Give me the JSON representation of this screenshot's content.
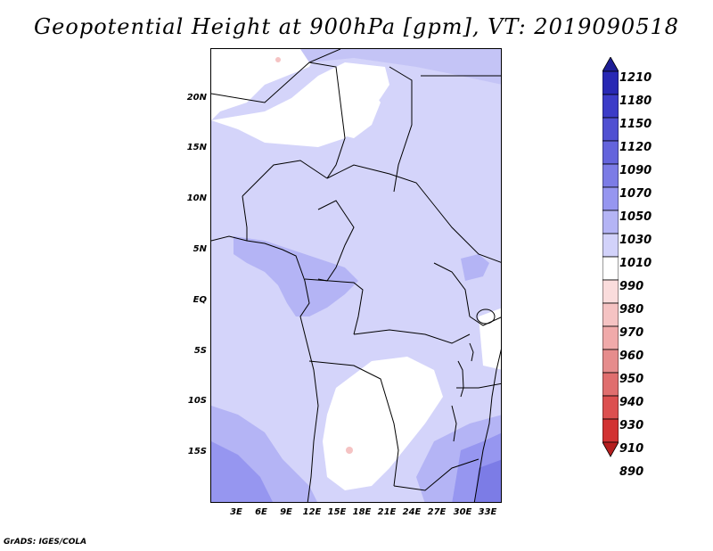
{
  "title": "Geopotential Height at 900hPa [gpm], VT: 2019090518",
  "credit": "GrADS: IGES/COLA",
  "lat_labels": [
    "20N",
    "15N",
    "10N",
    "5N",
    "EQ",
    "5S",
    "10S",
    "15S"
  ],
  "lon_labels": [
    "3E",
    "6E",
    "9E",
    "12E",
    "15E",
    "18E",
    "21E",
    "24E",
    "27E",
    "30E",
    "33E"
  ],
  "colorbar": {
    "levels": [
      "1210",
      "1180",
      "1150",
      "1120",
      "1090",
      "1070",
      "1050",
      "1030",
      "1010",
      "990",
      "980",
      "970",
      "960",
      "950",
      "940",
      "930",
      "910",
      "890"
    ],
    "colors": [
      "#1e1e96",
      "#2828b4",
      "#3c3cc8",
      "#5050d2",
      "#6464dc",
      "#7c7ce6",
      "#9696f0",
      "#b4b4f5",
      "#d2d2fa",
      "#ffffff",
      "#fadcdc",
      "#f5c3c3",
      "#f0aaaa",
      "#e68c8c",
      "#e06e6e",
      "#dc5050",
      "#d23232",
      "#b41e1e"
    ]
  }
}
